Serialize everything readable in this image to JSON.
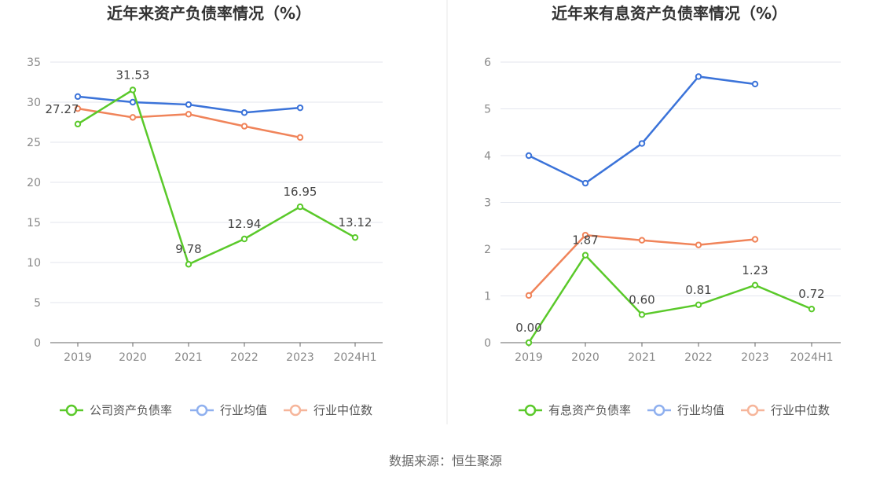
{
  "source_label": "数据来源：恒生聚源",
  "chart_data": [
    {
      "type": "line",
      "title": "近年来资产负债率情况（%）",
      "categories": [
        "2019",
        "2020",
        "2021",
        "2022",
        "2023",
        "2024H1"
      ],
      "ylim": [
        0,
        35
      ],
      "yticks": [
        0,
        5,
        10,
        15,
        20,
        25,
        30,
        35
      ],
      "grid": true,
      "legend_position": "bottom",
      "series": [
        {
          "name": "公司资产负债率",
          "color": "#5ac92a",
          "values": [
            27.27,
            31.53,
            9.78,
            12.94,
            16.95,
            13.12
          ],
          "labels": [
            "27.27",
            "31.53",
            "9.78",
            "12.94",
            "16.95",
            "13.12"
          ]
        },
        {
          "name": "行业均值",
          "color": "#3b73d9",
          "values": [
            30.7,
            30.0,
            29.7,
            28.7,
            29.3,
            null
          ]
        },
        {
          "name": "行业中位数",
          "color": "#f0845a",
          "values": [
            29.2,
            28.1,
            28.5,
            27.0,
            25.6,
            null
          ]
        }
      ]
    },
    {
      "type": "line",
      "title": "近年来有息资产负债率情况（%）",
      "categories": [
        "2019",
        "2020",
        "2021",
        "2022",
        "2023",
        "2024H1"
      ],
      "ylim": [
        0,
        6
      ],
      "yticks": [
        0,
        1,
        2,
        3,
        4,
        5,
        6
      ],
      "grid": true,
      "legend_position": "bottom",
      "series": [
        {
          "name": "有息资产负债率",
          "color": "#5ac92a",
          "values": [
            0.0,
            1.87,
            0.6,
            0.81,
            1.23,
            0.72
          ],
          "labels": [
            "0.00",
            "1.87",
            "0.60",
            "0.81",
            "1.23",
            "0.72"
          ]
        },
        {
          "name": "行业均值",
          "color": "#3b73d9",
          "values": [
            4.0,
            3.41,
            4.26,
            5.69,
            5.53,
            null
          ]
        },
        {
          "name": "行业中位数",
          "color": "#f0845a",
          "values": [
            1.01,
            2.3,
            2.19,
            2.09,
            2.21,
            null
          ]
        }
      ]
    }
  ]
}
